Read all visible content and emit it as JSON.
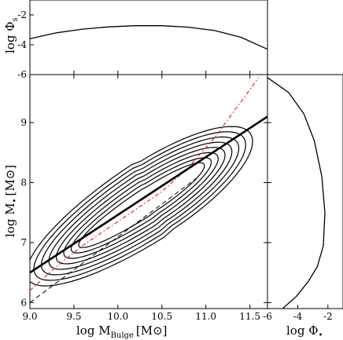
{
  "chart_data": [
    {
      "panel": "top-marginal",
      "type": "line",
      "xlim": [
        9.0,
        11.7
      ],
      "ylim": [
        -6,
        -1
      ],
      "ylabel": "log Φ",
      "ylabel_sub": "s",
      "yticks": [
        "-2",
        "-4",
        "-6"
      ],
      "series": [
        {
          "x": [
            9.0,
            9.3,
            9.6,
            9.9,
            10.2,
            10.5,
            10.8,
            11.1,
            11.4,
            11.7
          ],
          "y": [
            -3.6,
            -3.2,
            -2.95,
            -2.8,
            -2.72,
            -2.72,
            -2.82,
            -3.05,
            -3.5,
            -4.3
          ]
        }
      ]
    },
    {
      "panel": "main",
      "type": "line",
      "xlabel": "log M",
      "xlabel_sub": "Bulge",
      "xlabel_unit": "[M⊙]",
      "ylabel": "log M",
      "ylabel_sub": "•",
      "ylabel_unit": "[M⊙]",
      "xlim": [
        9.0,
        11.7
      ],
      "ylim": [
        5.9,
        9.8
      ],
      "xticks": [
        "9.0",
        "9.5",
        "10.0",
        "10.5",
        "11.0",
        "11.5"
      ],
      "yticks": [
        "6",
        "7",
        "8",
        "9"
      ],
      "fit_line": {
        "x": [
          9.0,
          11.7
        ],
        "y": [
          6.5,
          9.1
        ]
      },
      "dashed_line": {
        "x": [
          9.0,
          10.9
        ],
        "y": [
          6.0,
          8.08
        ]
      },
      "dash_dot_line": {
        "x": [
          9.0,
          9.3,
          9.6,
          9.9,
          10.2,
          10.5,
          10.8,
          11.1,
          11.4,
          11.6
        ],
        "y": [
          6.2,
          6.6,
          6.95,
          7.25,
          7.55,
          7.85,
          8.25,
          8.75,
          9.35,
          9.75
        ]
      },
      "contour_levels": 8
    },
    {
      "panel": "right-marginal",
      "type": "line",
      "xlim": [
        -6,
        -1
      ],
      "ylim": [
        5.9,
        9.8
      ],
      "xlabel": "log Φ",
      "xlabel_sub": "•",
      "xticks": [
        "-6",
        "-4",
        "-2"
      ],
      "series": [
        {
          "x": [
            -6.0,
            -4.6,
            -3.6,
            -2.9,
            -2.4,
            -2.2,
            -2.3,
            -2.7,
            -3.3,
            -4.1,
            -5.0
          ],
          "y": [
            9.75,
            9.5,
            9.15,
            8.7,
            8.1,
            7.5,
            6.95,
            6.6,
            6.35,
            6.1,
            5.9
          ]
        }
      ]
    }
  ]
}
